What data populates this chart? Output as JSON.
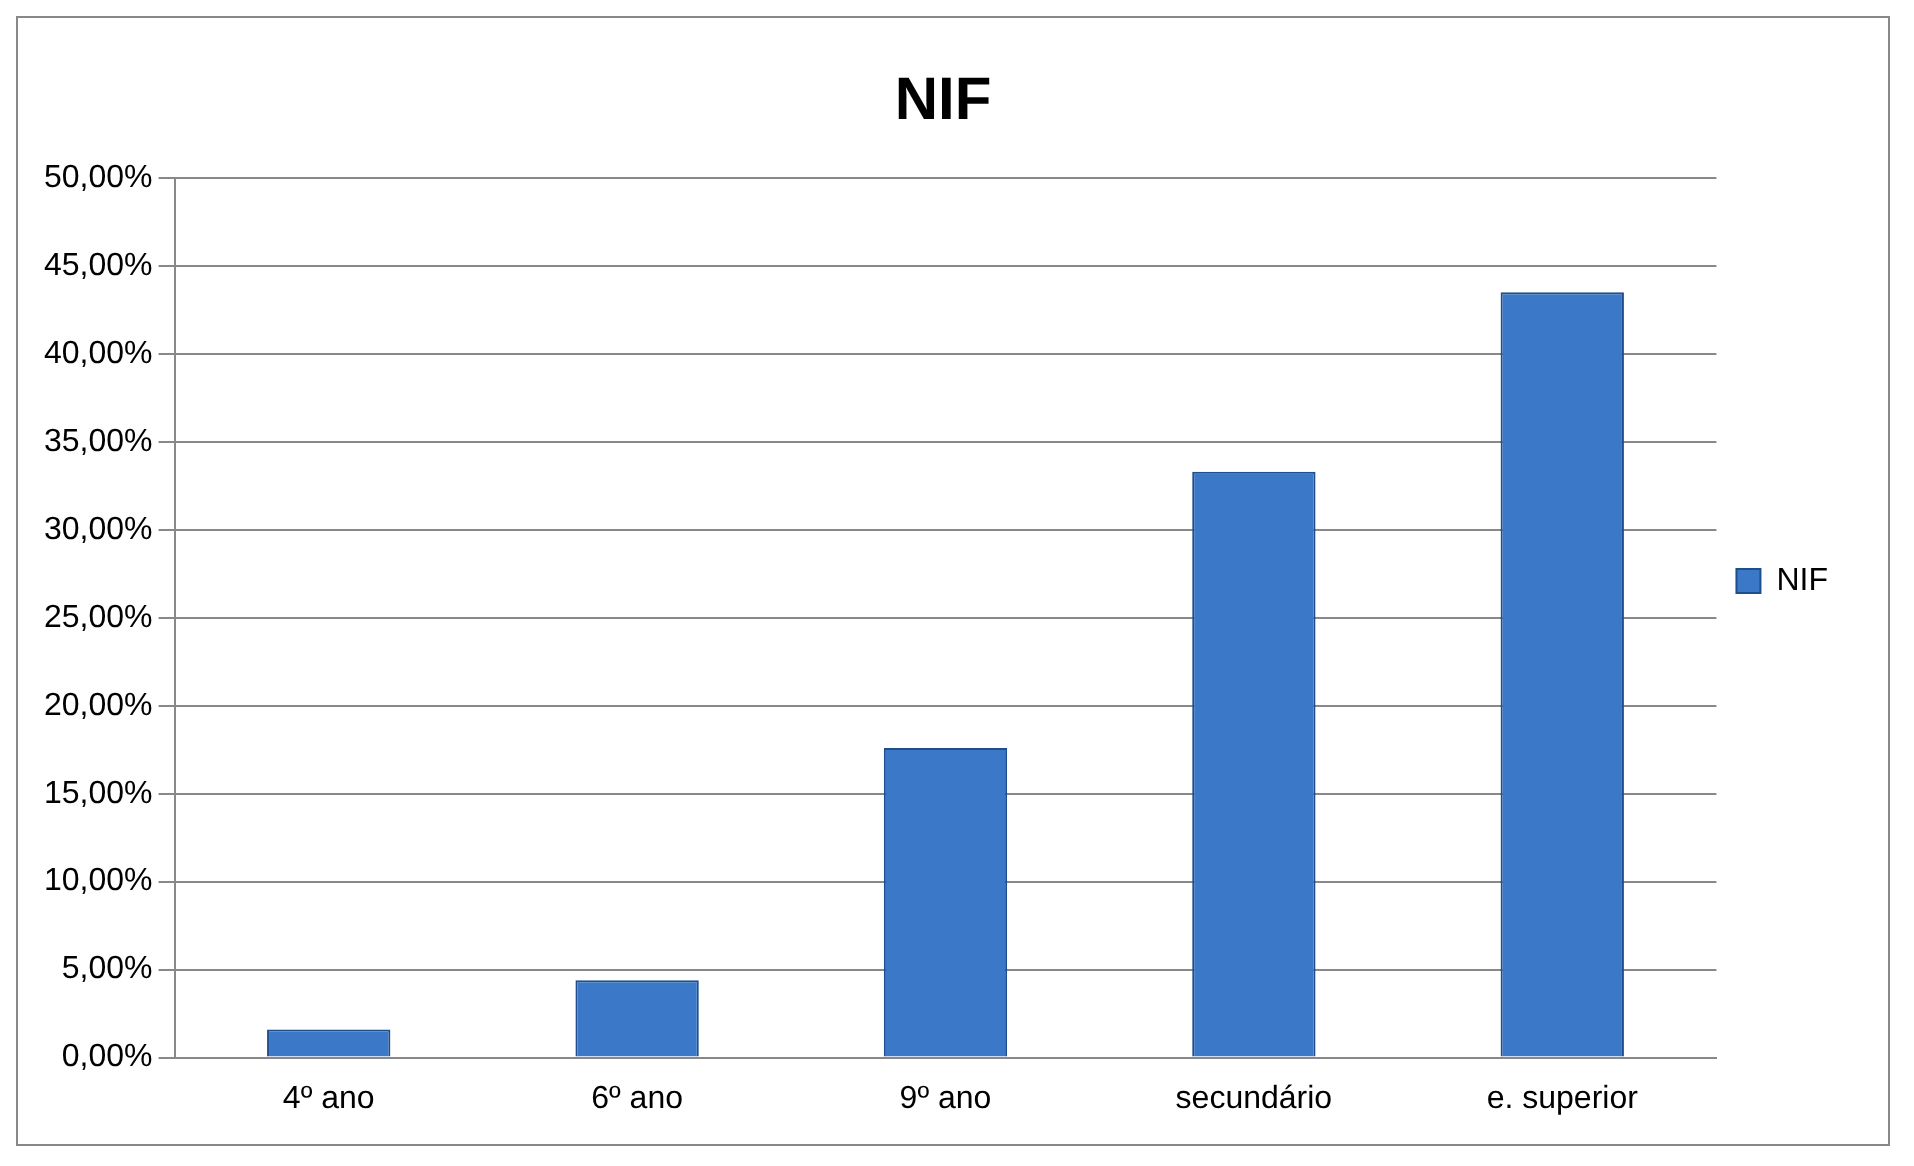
{
  "chart_data": {
    "type": "bar",
    "title": "NIF",
    "categories": [
      "4º ano",
      "6º ano",
      "9º ano",
      "secundário",
      "e. superior"
    ],
    "series": [
      {
        "name": "NIF",
        "color": "#3b78c8",
        "values": [
          1.6,
          4.4,
          17.6,
          33.3,
          43.5
        ]
      }
    ],
    "ylim": [
      0,
      50
    ],
    "yticks": [
      {
        "value": 0,
        "label": "0,00%"
      },
      {
        "value": 5,
        "label": "5,00%"
      },
      {
        "value": 10,
        "label": "10,00%"
      },
      {
        "value": 15,
        "label": "15,00%"
      },
      {
        "value": 20,
        "label": "20,00%"
      },
      {
        "value": 25,
        "label": "25,00%"
      },
      {
        "value": 30,
        "label": "30,00%"
      },
      {
        "value": 35,
        "label": "35,00%"
      },
      {
        "value": 40,
        "label": "40,00%"
      },
      {
        "value": 45,
        "label": "45,00%"
      },
      {
        "value": 50,
        "label": "50,00%"
      }
    ],
    "grid": "y",
    "legend": "right"
  }
}
